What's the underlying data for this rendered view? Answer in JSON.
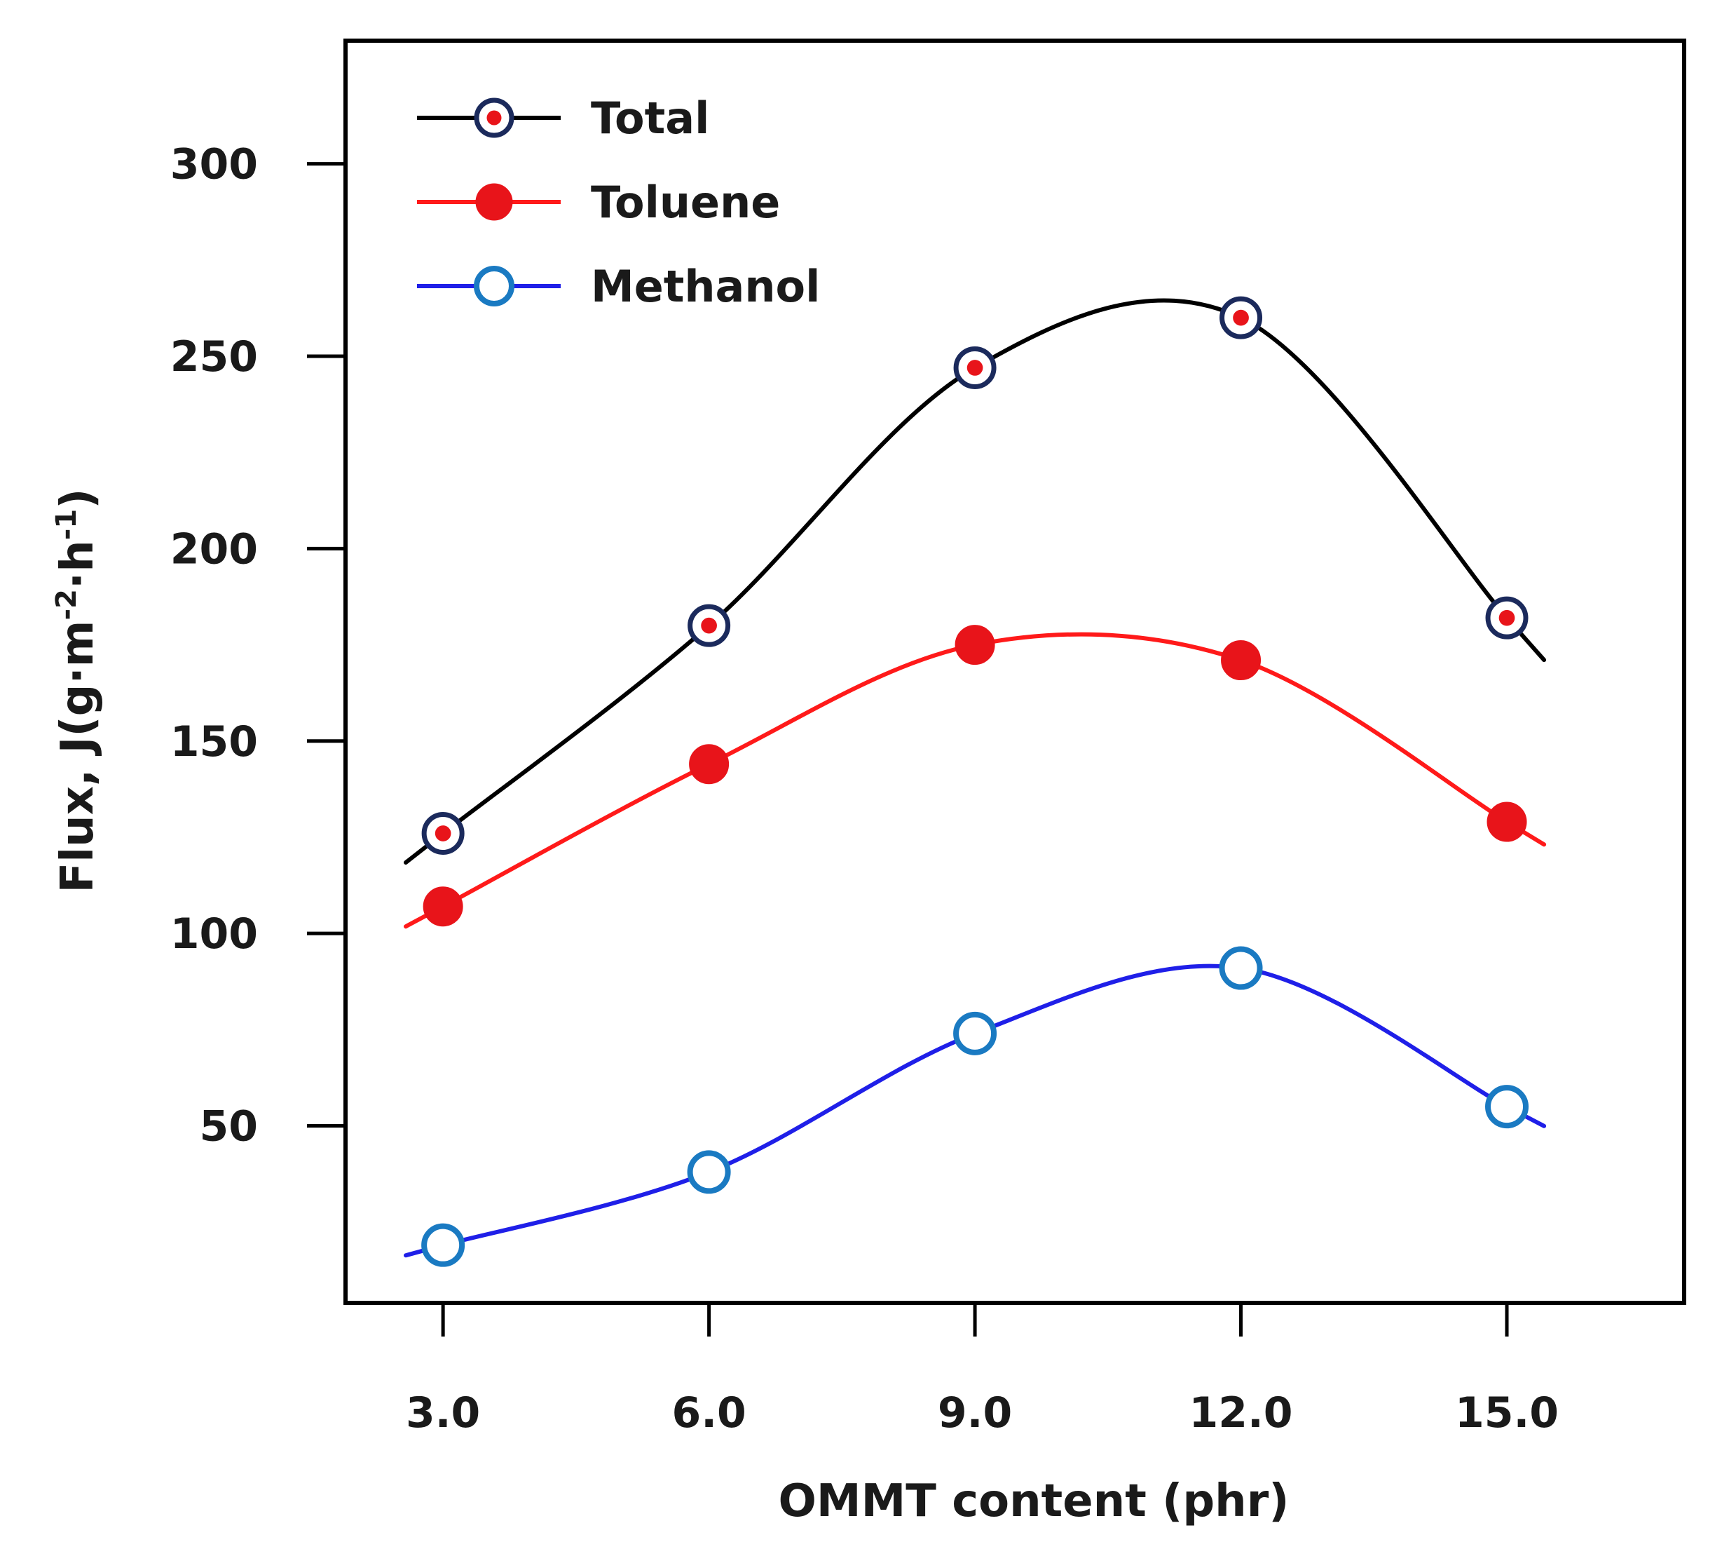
{
  "chart_data": {
    "type": "line",
    "title": "",
    "xlabel": "OMMT content (phr)",
    "ylabel": {
      "main": "Flux, J(g·m",
      "sup1": "-2",
      "mid": "·h",
      "sup2": "-1",
      "end": ")"
    },
    "x": [
      3.0,
      6.0,
      9.0,
      12.0,
      15.0
    ],
    "xticks": [
      "3.0",
      "6.0",
      "9.0",
      "12.0",
      "15.0"
    ],
    "yticks": [
      50,
      100,
      150,
      200,
      250,
      300
    ],
    "xlim": [
      1.9,
      17.0
    ],
    "ylim": [
      4,
      332
    ],
    "legend_position": "top-left",
    "series": [
      {
        "name": "Total",
        "values": [
          126,
          180,
          247,
          260,
          182
        ],
        "color": "#000000",
        "marker": "target",
        "marker_fill": "#e8141a",
        "marker_ring": "#1b2a5c"
      },
      {
        "name": "Toluene",
        "values": [
          107,
          144,
          175,
          171,
          129
        ],
        "color": "#ff1a1a",
        "marker": "filled-circle",
        "marker_fill": "#e8141a",
        "marker_ring": "#e8141a"
      },
      {
        "name": "Methanol",
        "values": [
          19,
          38,
          74,
          91,
          55
        ],
        "color": "#1f1fe8",
        "marker": "open-circle",
        "marker_fill": "#ffffff",
        "marker_ring": "#1a7ac2"
      }
    ]
  }
}
